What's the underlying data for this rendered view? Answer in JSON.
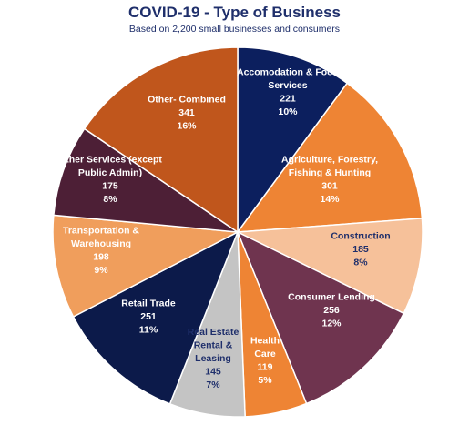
{
  "chart_data": {
    "type": "pie",
    "title": "COVID-19 - Type of Business",
    "subtitle": "Based on 2,200 small businesses and consumers",
    "slices": [
      {
        "label": "Accomodation & Food Services",
        "label_lines": [
          "Accomodation & Food",
          "Services"
        ],
        "value": 221,
        "percent": "10%",
        "color": "#0c1f5e",
        "text_color": "#ffffff"
      },
      {
        "label": "Agriculture, Forestry, Fishing & Hunting",
        "label_lines": [
          "Agriculture, Forestry,",
          "Fishing & Hunting"
        ],
        "value": 301,
        "percent": "14%",
        "color": "#ee8434",
        "text_color": "#ffffff"
      },
      {
        "label": "Construction",
        "label_lines": [
          "Construction"
        ],
        "value": 185,
        "percent": "8%",
        "color": "#f6c19a",
        "text_color": "#1f2f6b"
      },
      {
        "label": "Consumer Lending",
        "label_lines": [
          "Consumer Lending"
        ],
        "value": 256,
        "percent": "12%",
        "color": "#6f344f",
        "text_color": "#ffffff"
      },
      {
        "label": "Health Care",
        "label_lines": [
          "Health",
          "Care"
        ],
        "value": 119,
        "percent": "5%",
        "color": "#ee8434",
        "text_color": "#ffffff"
      },
      {
        "label": "Real Estate Rental & Leasing",
        "label_lines": [
          "Real Estate",
          "Rental &",
          "Leasing"
        ],
        "value": 145,
        "percent": "7%",
        "color": "#c4c4c4",
        "text_color": "#1f2f6b"
      },
      {
        "label": "Retail Trade",
        "label_lines": [
          "Retail Trade"
        ],
        "value": 251,
        "percent": "11%",
        "color": "#0c1a4a",
        "text_color": "#ffffff"
      },
      {
        "label": "Transportation & Warehousing",
        "label_lines": [
          "Transportation &",
          "Warehousing"
        ],
        "value": 198,
        "percent": "9%",
        "color": "#f09e5c",
        "text_color": "#ffffff"
      },
      {
        "label": "Other Services (except Public Admin)",
        "label_lines": [
          "Other Services (except",
          "Public Admin)"
        ],
        "value": 175,
        "percent": "8%",
        "color": "#4d1f36",
        "text_color": "#ffffff"
      },
      {
        "label": "Other- Combined",
        "label_lines": [
          "Other- Combined"
        ],
        "value": 341,
        "percent": "16%",
        "color": "#c0561c",
        "text_color": "#ffffff"
      }
    ]
  }
}
